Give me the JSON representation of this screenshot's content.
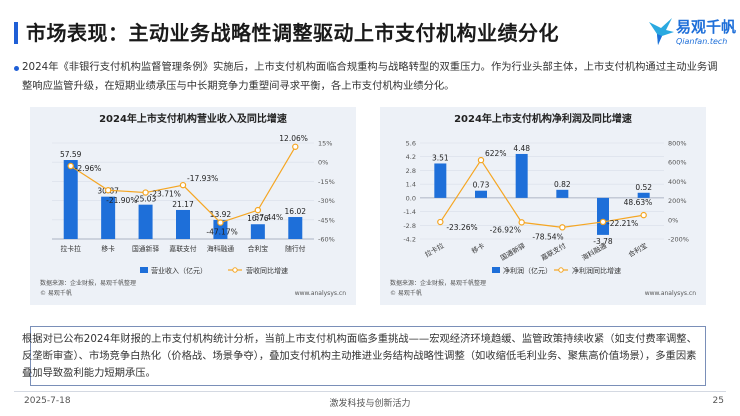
{
  "header": {
    "title": "市场表现：主动业务战略性调整驱动上市支付机构业绩分化",
    "logo_cn": "易观千帆",
    "logo_en": "Qianfan.tech"
  },
  "intro": "2024年《非银行支付机构监督管理条例》实施后，上市支付机构面临合规重构与战略转型的双重压力。作为行业头部主体，上市支付机构通过主动业务调整响应监管升级，在短期业绩承压与中长期竞争力重塑间寻求平衡，各上市支付机构业绩分化。",
  "summary": "根据对已公布2024年财报的上市支付机构统计分析，当前上市支付机构面临多重挑战——宏观经济环境趋缓、监管政策持续收紧（如支付费率调整、反垄断审查）、市场竞争白热化（价格战、场景争夺），叠加支付机构主动推进业务结构战略性调整（如收缩低毛利业务、聚焦高价值场景），多重因素叠加导致盈利能力短期承压。",
  "footer": {
    "date": "2025-7-18",
    "center": "激发科技与创新活力",
    "page": "25"
  },
  "colors": {
    "accent": "#1f5fd6",
    "bar": "#1e6fd9",
    "line": "#f5a623",
    "panel": "#edf1f7"
  },
  "chart_data": [
    {
      "type": "bar",
      "title": "2024年上市支付机构营业收入及同比增速",
      "categories": [
        "拉卡拉",
        "移卡",
        "国通新驿",
        "嘉联支付",
        "海科融通",
        "合利宝",
        "随行付"
      ],
      "series": [
        {
          "name": "营业收入（亿元）",
          "type": "bar",
          "axis": "left",
          "values": [
            57.59,
            30.87,
            25.03,
            21.17,
            13.92,
            10.76,
            16.02
          ]
        },
        {
          "name": "营收同比增速",
          "type": "line",
          "axis": "right",
          "values": [
            -2.96,
            -21.9,
            -23.71,
            -17.93,
            -47.17,
            -37.44,
            12.06
          ]
        }
      ],
      "bar_labels": [
        "57.59",
        "30.87",
        "25.03",
        "21.17",
        "13.92",
        "10.76",
        "16.02"
      ],
      "line_labels": [
        "-2.96%",
        "-21.90%",
        "-23.71%",
        "-17.93%",
        "-47.17%",
        "-37.44%",
        "12.06%"
      ],
      "ylim": [
        0,
        70
      ],
      "y2lim": [
        -60,
        15
      ],
      "y2ticks": [
        "15%",
        "0%",
        "-15%",
        "-30%",
        "-45%",
        "-60%"
      ],
      "legend": "bottom",
      "source": "数据来源：企业财报，易观千帆整理",
      "brand": "© 易观千帆",
      "site": "www.analysys.cn"
    },
    {
      "type": "bar",
      "title": "2024年上市支付机构净利润及同比增速",
      "categories": [
        "拉卡拉",
        "移卡",
        "国通新驿",
        "嘉联支付",
        "海科融通",
        "合利宝"
      ],
      "series": [
        {
          "name": "净利润（亿元）",
          "type": "bar",
          "axis": "left",
          "values": [
            3.51,
            0.73,
            4.48,
            0.82,
            -3.78,
            0.52
          ]
        },
        {
          "name": "净利润同比增速",
          "type": "line",
          "axis": "right",
          "values": [
            -23.26,
            622,
            -26.92,
            -78.54,
            -22.21,
            48.63
          ]
        }
      ],
      "bar_labels": [
        "3.51",
        "0.73",
        "4.48",
        "0.82",
        "-3.78",
        "0.52"
      ],
      "line_labels": [
        "-23.26%",
        "622%",
        "-26.92%",
        "-78.54%",
        "-22.21%",
        "48.63%"
      ],
      "ylim": [
        -4.2,
        5.6
      ],
      "yticks": [
        "5.6",
        "4.2",
        "2.8",
        "1.4",
        "0.0",
        "-1.4",
        "-2.8",
        "-4.2"
      ],
      "y2lim": [
        -200,
        800
      ],
      "y2ticks": [
        "800%",
        "600%",
        "400%",
        "200%",
        "0%",
        "-200%"
      ],
      "legend": "bottom",
      "source": "数据来源：企业财报，易观千帆整理",
      "brand": "© 易观千帆",
      "site": "www.analysys.cn"
    }
  ]
}
